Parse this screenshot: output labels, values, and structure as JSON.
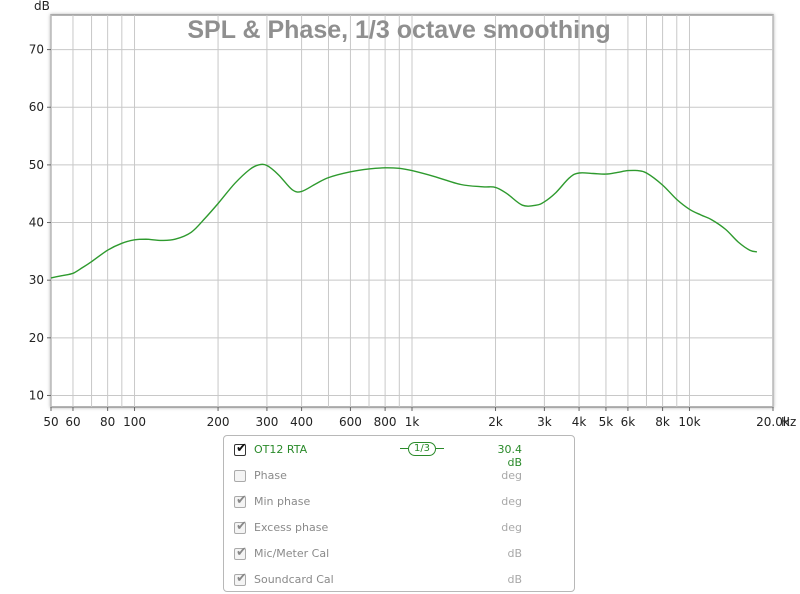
{
  "chart_data": {
    "type": "line",
    "title": "SPL & Phase, 1/3 octave smoothing",
    "ylabel": "dB",
    "xlabel": "Hz",
    "x_scale": "log",
    "xlim": [
      50,
      20000
    ],
    "ylim": [
      8,
      76
    ],
    "grid": true,
    "y_ticks": [
      10,
      20,
      30,
      40,
      50,
      60,
      70
    ],
    "x_ticks": [
      {
        "value": 50,
        "label": "50"
      },
      {
        "value": 60,
        "label": "60"
      },
      {
        "value": 80,
        "label": "80"
      },
      {
        "value": 100,
        "label": "100"
      },
      {
        "value": 200,
        "label": "200"
      },
      {
        "value": 300,
        "label": "300"
      },
      {
        "value": 400,
        "label": "400"
      },
      {
        "value": 600,
        "label": "600"
      },
      {
        "value": 800,
        "label": "800"
      },
      {
        "value": 1000,
        "label": "1k"
      },
      {
        "value": 2000,
        "label": "2k"
      },
      {
        "value": 3000,
        "label": "3k"
      },
      {
        "value": 4000,
        "label": "4k"
      },
      {
        "value": 5000,
        "label": "5k"
      },
      {
        "value": 6000,
        "label": "6k"
      },
      {
        "value": 8000,
        "label": "8k"
      },
      {
        "value": 10000,
        "label": "10k"
      },
      {
        "value": 20000,
        "label": "20.0k"
      }
    ],
    "series": [
      {
        "name": "OT12 RTA",
        "color": "#2e9a2e",
        "x": [
          50,
          55,
          60,
          65,
          70,
          80,
          90,
          100,
          110,
          125,
          140,
          160,
          180,
          200,
          230,
          260,
          280,
          300,
          330,
          370,
          400,
          450,
          500,
          600,
          700,
          800,
          900,
          1000,
          1200,
          1500,
          1800,
          2000,
          2200,
          2500,
          2800,
          3000,
          3300,
          3700,
          4000,
          4500,
          5000,
          5500,
          6000,
          6500,
          7000,
          8000,
          9000,
          10000,
          11000,
          12000,
          13500,
          15000,
          16500,
          17500
        ],
        "y": [
          30.4,
          30.8,
          31.2,
          32.2,
          33.2,
          35.2,
          36.4,
          37.0,
          37.1,
          36.9,
          37.1,
          38.3,
          40.8,
          43.3,
          46.8,
          49.2,
          50.0,
          49.9,
          48.3,
          45.7,
          45.4,
          46.7,
          47.8,
          48.8,
          49.3,
          49.5,
          49.4,
          49.0,
          48.0,
          46.6,
          46.2,
          46.1,
          45.0,
          43.0,
          43.0,
          43.6,
          45.2,
          47.8,
          48.6,
          48.5,
          48.4,
          48.7,
          49.0,
          49.0,
          48.6,
          46.5,
          44.0,
          42.3,
          41.3,
          40.5,
          38.8,
          36.6,
          35.2,
          34.9
        ]
      }
    ]
  },
  "legend": {
    "rows": [
      {
        "label": "OT12 RTA",
        "checked": true,
        "active": true,
        "unit": "30.4 dB",
        "smoothing": "1/3"
      },
      {
        "label": "Phase",
        "checked": false,
        "active": false,
        "unit": "deg"
      },
      {
        "label": "Min phase",
        "checked": true,
        "active": false,
        "unit": "deg"
      },
      {
        "label": "Excess phase",
        "checked": true,
        "active": false,
        "unit": "deg"
      },
      {
        "label": "Mic/Meter Cal",
        "checked": true,
        "active": false,
        "unit": "dB"
      },
      {
        "label": "Soundcard Cal",
        "checked": true,
        "active": false,
        "unit": "dB"
      }
    ]
  }
}
